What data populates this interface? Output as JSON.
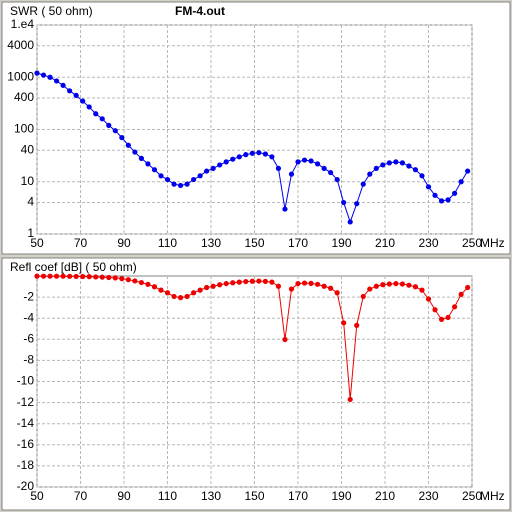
{
  "chart_data": [
    {
      "type": "line",
      "title": "FM-4.out",
      "ylabel": "SWR ( 50 ohm)",
      "xlabel": "MHz",
      "log_y": true,
      "grid": true,
      "color": "#0000ee",
      "x": [
        50,
        53,
        56,
        59,
        62,
        65,
        68,
        71,
        74,
        77,
        80,
        83,
        86,
        89,
        92,
        95,
        98,
        101,
        104,
        107,
        110,
        113,
        116,
        119,
        122,
        125,
        128,
        131,
        134,
        137,
        140,
        143,
        146,
        149,
        152,
        155,
        158,
        161,
        164,
        167,
        170,
        173,
        176,
        179,
        182,
        185,
        188,
        191,
        194,
        197,
        200,
        203,
        206,
        209,
        212,
        215,
        218,
        221,
        224,
        227,
        230,
        233,
        236,
        239,
        242,
        245,
        248
      ],
      "values": [
        1200,
        1100,
        1000,
        850,
        700,
        550,
        450,
        350,
        270,
        200,
        160,
        120,
        95,
        70,
        50,
        37,
        28,
        22,
        17,
        13,
        11,
        9,
        8.5,
        9,
        11,
        13,
        16,
        18,
        21,
        24,
        27,
        30,
        33,
        35,
        36,
        34,
        30,
        18,
        3,
        14,
        24,
        26,
        25,
        22,
        18,
        15,
        11,
        4,
        1.7,
        3.8,
        9,
        14,
        18,
        21,
        23,
        24,
        23,
        20,
        17,
        13,
        8,
        5.5,
        4.3,
        4.5,
        6,
        10,
        16
      ],
      "xlim": [
        50,
        250
      ],
      "xticks": [
        50,
        70,
        90,
        110,
        130,
        150,
        170,
        190,
        210,
        230,
        250
      ],
      "ylim": [
        1,
        10000
      ],
      "yticks": [
        {
          "value": 10000,
          "label": "1.e4"
        },
        4000,
        1000,
        400,
        100,
        40,
        10,
        4,
        1
      ]
    },
    {
      "type": "line",
      "ylabel": "Refl coef [dB] ( 50 ohm)",
      "xlabel": "MHz",
      "log_y": false,
      "grid": true,
      "color": "#ee0000",
      "x": [
        50,
        53,
        56,
        59,
        62,
        65,
        68,
        71,
        74,
        77,
        80,
        83,
        86,
        89,
        92,
        95,
        98,
        101,
        104,
        107,
        110,
        113,
        116,
        119,
        122,
        125,
        128,
        131,
        134,
        137,
        140,
        143,
        146,
        149,
        152,
        155,
        158,
        161,
        164,
        167,
        170,
        173,
        176,
        179,
        182,
        185,
        188,
        191,
        194,
        197,
        200,
        203,
        206,
        209,
        212,
        215,
        218,
        221,
        224,
        227,
        230,
        233,
        236,
        239,
        242,
        245,
        248
      ],
      "values": [
        -0.01,
        -0.02,
        -0.02,
        -0.02,
        -0.02,
        -0.03,
        -0.04,
        -0.05,
        -0.06,
        -0.09,
        -0.11,
        -0.14,
        -0.18,
        -0.25,
        -0.35,
        -0.47,
        -0.62,
        -0.79,
        -1.02,
        -1.34,
        -1.59,
        -1.94,
        -2.05,
        -1.94,
        -1.59,
        -1.34,
        -1.09,
        -0.97,
        -0.83,
        -0.72,
        -0.64,
        -0.58,
        -0.53,
        -0.5,
        -0.48,
        -0.51,
        -0.58,
        -0.97,
        -6.02,
        -1.24,
        -0.72,
        -0.67,
        -0.7,
        -0.79,
        -0.97,
        -1.16,
        -1.59,
        -4.44,
        -11.7,
        -4.68,
        -1.94,
        -1.24,
        -0.97,
        -0.83,
        -0.76,
        -0.72,
        -0.76,
        -0.87,
        -1.02,
        -1.34,
        -2.18,
        -3.2,
        -4.11,
        -3.93,
        -2.92,
        -1.74,
        -1.09
      ],
      "xlim": [
        50,
        250
      ],
      "xticks": [
        50,
        70,
        90,
        110,
        130,
        150,
        170,
        190,
        210,
        230,
        250
      ],
      "ylim": [
        -20,
        0
      ],
      "yticks": [
        -2,
        -4,
        -6,
        -8,
        -10,
        -12,
        -14,
        -16,
        -18,
        -20
      ]
    }
  ]
}
